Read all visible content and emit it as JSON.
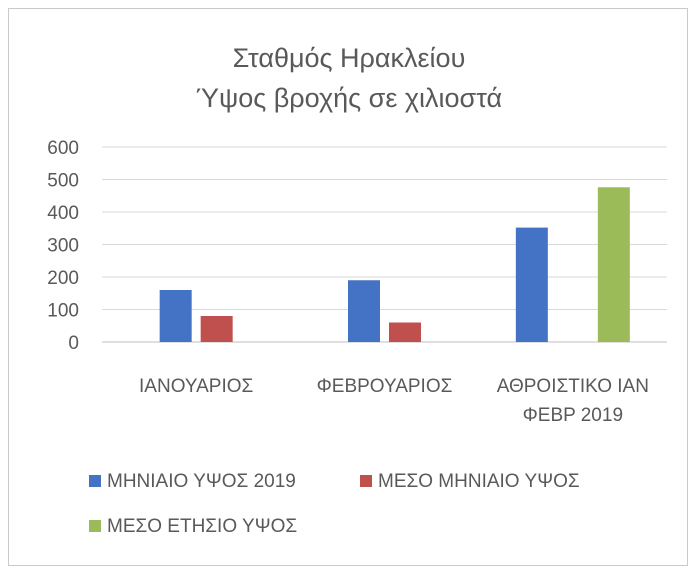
{
  "chart_data": {
    "type": "bar",
    "title": [
      "Σταθμός Ηρακλείου",
      "Ύψος βροχής σε χιλιοστά"
    ],
    "categories": [
      [
        "ΙΑΝΟΥΑΡΙΟΣ"
      ],
      [
        "ΦΕΒΡΟΥΑΡΙΟΣ"
      ],
      [
        "ΑΘΡΟΙΣΤΙΚΟ ΙΑΝ",
        "ΦΕΒΡ 2019"
      ]
    ],
    "series": [
      {
        "name": "ΜΗΝΙΑΙΟ ΥΨΟΣ 2019",
        "color": "#4472c4",
        "values": [
          160,
          190,
          352
        ]
      },
      {
        "name": "ΜΕΣΟ ΜΗΝΙΑΙΟ ΥΨΟΣ",
        "color": "#c0504d",
        "values": [
          80,
          60,
          null
        ]
      },
      {
        "name": "ΜΕΣΟ ΕΤΗΣΙΟ ΥΨΟΣ",
        "color": "#9bbb59",
        "values": [
          null,
          null,
          476
        ]
      }
    ],
    "ylim": [
      0,
      600
    ],
    "yticks": [
      0,
      100,
      200,
      300,
      400,
      500,
      600
    ],
    "grid": true,
    "legend": "bottom",
    "xlabel": "",
    "ylabel": ""
  }
}
